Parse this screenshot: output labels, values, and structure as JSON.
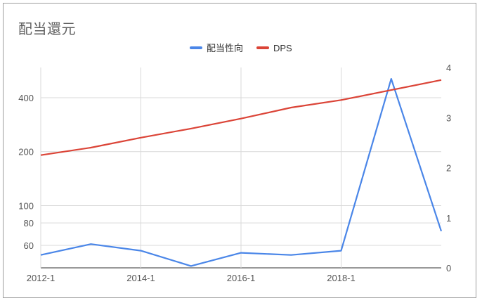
{
  "chart_data": {
    "type": "line",
    "title": "配当還元",
    "x": [
      "2012-1",
      "2013-1",
      "2014-1",
      "2015-1",
      "2016-1",
      "2017-1",
      "2018-1",
      "2019-1",
      "2020-1"
    ],
    "x_tick_labels": [
      "2012-1",
      "2014-1",
      "2016-1",
      "2018-1"
    ],
    "series": [
      {
        "name": "配当性向",
        "axis": "left",
        "color": "#4a86e8",
        "values": [
          53,
          61,
          56,
          46,
          54.5,
          53,
          56,
          510,
          72
        ]
      },
      {
        "name": "DPS",
        "axis": "right",
        "color": "#db4437",
        "values": [
          2.25,
          2.4,
          2.6,
          2.78,
          2.98,
          3.2,
          3.35,
          3.55,
          3.75
        ]
      }
    ],
    "left_axis": {
      "scale": "log",
      "ticks": [
        60,
        80,
        100,
        200,
        400
      ]
    },
    "right_axis": {
      "scale": "linear",
      "ylim": [
        0,
        4
      ],
      "ticks": [
        0,
        1,
        2,
        3,
        4
      ]
    },
    "legend_position": "top",
    "grid": true
  }
}
